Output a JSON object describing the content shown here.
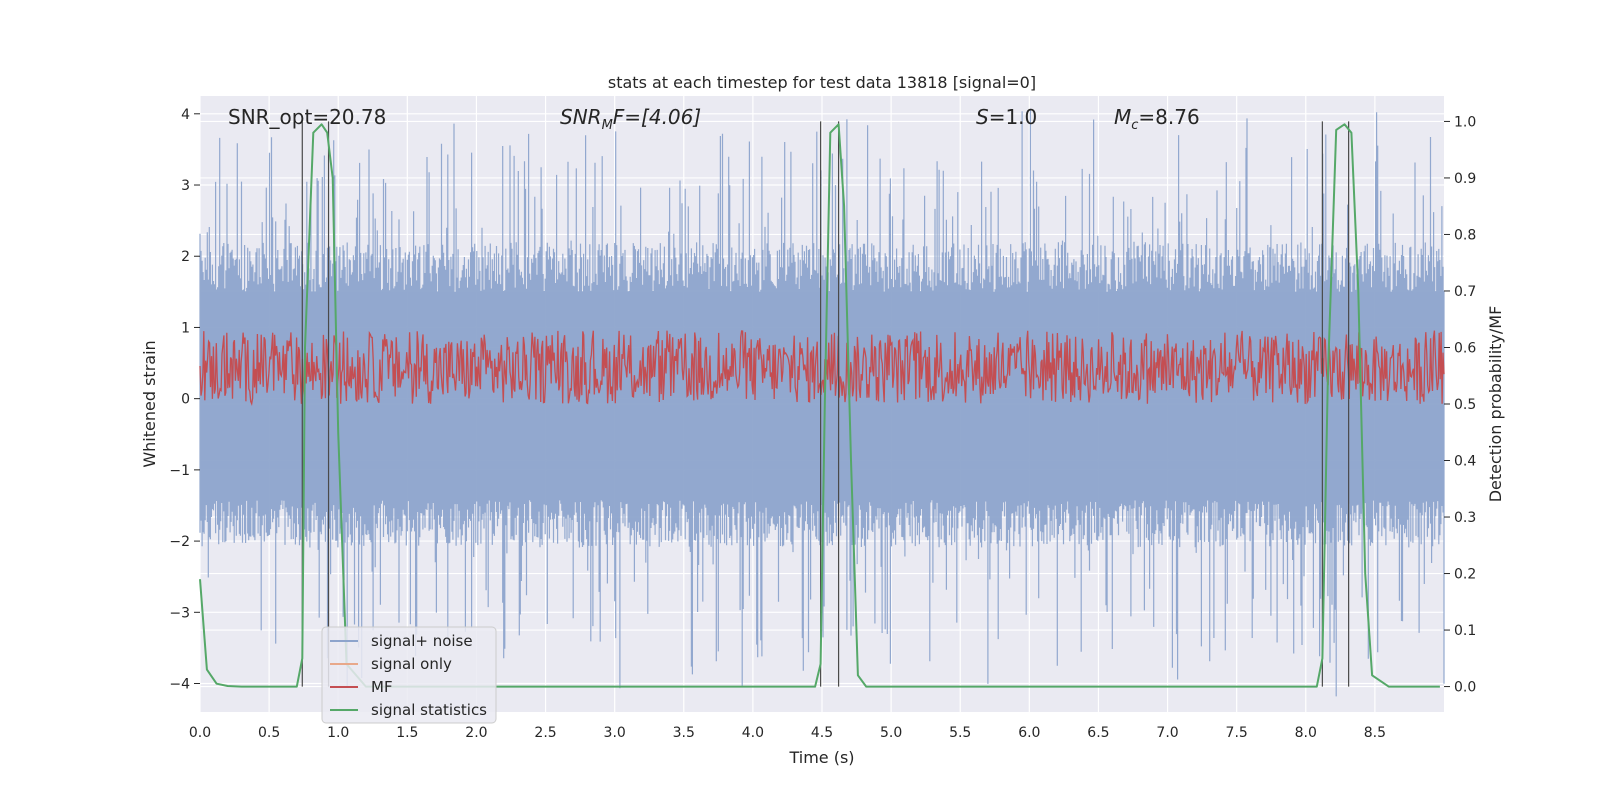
{
  "chart_data": {
    "type": "line",
    "title": "stats at each timestep for test data 13818 [signal=0]",
    "xlabel": "Time (s)",
    "ylabel": "Whitened strain",
    "y2label": "Detection probability/MF",
    "xlim": [
      0.0,
      9.0
    ],
    "ylim": [
      -4.4,
      4.25
    ],
    "y2lim": [
      -0.045,
      1.045
    ],
    "x_ticks": [
      "0.0",
      "0.5",
      "1.0",
      "1.5",
      "2.0",
      "2.5",
      "3.0",
      "3.5",
      "4.0",
      "4.5",
      "5.0",
      "5.5",
      "6.0",
      "6.5",
      "7.0",
      "7.5",
      "8.0",
      "8.5"
    ],
    "y_ticks": [
      "4",
      "3",
      "2",
      "1",
      "0",
      "−1",
      "−2",
      "−3",
      "−4"
    ],
    "y2_ticks": [
      "1.0",
      "0.9",
      "0.8",
      "0.7",
      "0.6",
      "0.5",
      "0.4",
      "0.3",
      "0.2",
      "0.1",
      "0.0"
    ],
    "grid": true,
    "legend_position": "lower-left",
    "annotations": {
      "snr_opt": "SNR_opt=20.78",
      "snr_mf_prefix": "SNR",
      "snr_mf_sub": "M",
      "snr_mf_suffix": "F=[4.06]",
      "s_var": "S",
      "s_value": "=1.0",
      "mc_var": "M",
      "mc_sub": "c",
      "mc_value": "=8.76"
    },
    "vertical_lines_x": [
      0.74,
      0.93,
      4.49,
      4.62,
      8.12,
      8.31
    ],
    "series": [
      {
        "name": "signal+ noise",
        "color": "#8da4cc",
        "axis": "left",
        "sample_rate": 2048,
        "duration": 9.0,
        "envelope": {
          "upper_typical": 2.0,
          "upper_peak": 3.9,
          "lower_typical": -1.9,
          "lower_peak": -4.0
        }
      },
      {
        "name": "signal only",
        "color": "#e8a88a",
        "axis": "left",
        "values": []
      },
      {
        "name": "MF",
        "color": "#c44e52",
        "axis": "right",
        "envelope": {
          "min": 0.5,
          "max": 0.62,
          "peak": 0.63
        }
      },
      {
        "name": "signal statistics",
        "color": "#55a868",
        "axis": "right",
        "x": [
          0.0,
          0.05,
          0.12,
          0.2,
          0.3,
          0.7,
          0.74,
          0.76,
          0.82,
          0.88,
          0.92,
          0.96,
          1.0,
          1.06,
          1.2,
          2.0,
          3.0,
          4.0,
          4.45,
          4.49,
          4.52,
          4.56,
          4.62,
          4.66,
          4.71,
          4.76,
          4.82,
          5.0,
          6.0,
          7.0,
          8.0,
          8.08,
          8.12,
          8.16,
          8.22,
          8.28,
          8.33,
          8.38,
          8.43,
          8.48,
          8.6,
          8.97
        ],
        "y": [
          0.19,
          0.03,
          0.005,
          0.001,
          0.0,
          0.0,
          0.05,
          0.6,
          0.98,
          0.995,
          0.98,
          0.9,
          0.45,
          0.04,
          0.0,
          0.0,
          0.0,
          0.0,
          0.0,
          0.04,
          0.5,
          0.98,
          0.995,
          0.85,
          0.4,
          0.02,
          0.0,
          0.0,
          0.0,
          0.0,
          0.0,
          0.0,
          0.05,
          0.55,
          0.985,
          0.995,
          0.98,
          0.7,
          0.2,
          0.02,
          0.0,
          0.0
        ]
      }
    ]
  }
}
